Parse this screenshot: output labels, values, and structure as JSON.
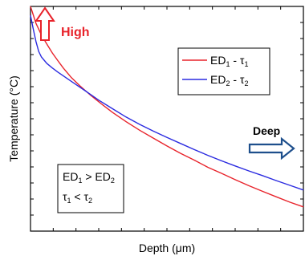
{
  "chart_data": {
    "type": "line",
    "title": "",
    "xlabel": "Depth (μm)",
    "ylabel": "Temperature (°C)",
    "xlim": [
      0,
      100
    ],
    "ylim": [
      0,
      100
    ],
    "grid": false,
    "legend_position": "top-right",
    "series": [
      {
        "label_main": "ED",
        "label_sub1": "1",
        "label_mid": " - τ",
        "label_sub2": "1",
        "color": "#e8232b",
        "x": [
          0,
          2,
          4,
          6,
          8,
          10,
          12,
          15,
          18,
          22,
          26,
          30,
          35,
          40,
          45,
          50,
          55,
          60,
          65,
          70,
          75,
          80,
          85,
          90,
          95,
          100
        ],
        "y": [
          100,
          92.5,
          87.3,
          83.2,
          79.3,
          75.9,
          72.6,
          68.3,
          64.8,
          60.5,
          56.6,
          52.9,
          48.7,
          44.9,
          41.4,
          37.9,
          34.6,
          31.6,
          28.4,
          25.7,
          22.9,
          20.2,
          17.7,
          15.3,
          12.9,
          10.8
        ]
      },
      {
        "label_main": "ED",
        "label_sub1": "2",
        "label_mid": " - τ",
        "label_sub2": "2",
        "color": "#2b2be0",
        "x": [
          0,
          1,
          2,
          3,
          4,
          6,
          8,
          10,
          13,
          16,
          20,
          25,
          30,
          35,
          40,
          45,
          50,
          55,
          60,
          65,
          70,
          75,
          80,
          85,
          90,
          95,
          100
        ],
        "y": [
          96.0,
          90.0,
          84.4,
          80.0,
          77.5,
          74.6,
          72.6,
          70.8,
          68.3,
          65.8,
          62.5,
          58.3,
          54.5,
          50.8,
          47.5,
          44.5,
          41.7,
          39.0,
          36.3,
          33.7,
          31.3,
          29.0,
          26.8,
          24.7,
          22.5,
          20.4,
          18.3
        ]
      }
    ]
  },
  "annotations": {
    "high": "High",
    "deep": "Deep",
    "high_color": "#e8232b",
    "deep_color": "#1e4f8c",
    "cond1_main": "ED",
    "cond1_sub1": "1",
    "cond1_mid": " > ED",
    "cond1_sub2": "2",
    "cond2_main": "τ",
    "cond2_sub1": "1",
    "cond2_mid": " < τ",
    "cond2_sub2": "2"
  }
}
